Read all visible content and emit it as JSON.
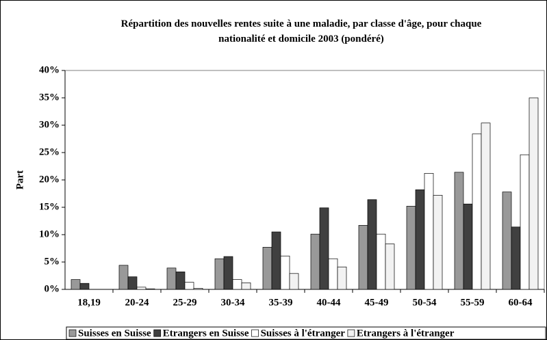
{
  "chart_data": {
    "type": "bar",
    "title": "Répartition des nouvelles rentes suite à une maladie, par classe d'âge, pour chaque nationalité et domicile 2003 (pondéré)",
    "y_label": "Part",
    "categories": [
      "18,19",
      "20-24",
      "25-29",
      "30-34",
      "35-39",
      "40-44",
      "45-49",
      "50-54",
      "55-59",
      "60-64"
    ],
    "series": [
      {
        "name": "Suisses en Suisse",
        "color": "#999999",
        "values": [
          1.8,
          4.4,
          3.9,
          5.6,
          7.7,
          10.1,
          11.7,
          15.2,
          21.4,
          17.8
        ]
      },
      {
        "name": "Etrangers en Suisse",
        "color": "#404040",
        "values": [
          1.1,
          2.3,
          3.2,
          6.0,
          10.5,
          14.9,
          16.4,
          18.2,
          15.6,
          11.4
        ]
      },
      {
        "name": "Suisses à l'étranger",
        "color": "#ffffff",
        "values": [
          0,
          0.4,
          1.3,
          1.8,
          6.1,
          5.6,
          10.1,
          21.2,
          28.4,
          24.6
        ]
      },
      {
        "name": "Etrangers à l'étranger",
        "color": "#f2f2f2",
        "values": [
          0,
          0.1,
          0.2,
          1.2,
          2.9,
          4.1,
          8.3,
          17.2,
          30.4,
          35.0
        ]
      }
    ],
    "ylim": [
      0,
      40
    ],
    "yticks": [
      {
        "value": 0,
        "label": "0%"
      },
      {
        "value": 5,
        "label": "5%"
      },
      {
        "value": 10,
        "label": "10%"
      },
      {
        "value": 15,
        "label": "15%"
      },
      {
        "value": 20,
        "label": "20%"
      },
      {
        "value": 25,
        "label": "25%"
      },
      {
        "value": 30,
        "label": "30%"
      },
      {
        "value": 35,
        "label": "35%"
      },
      {
        "value": 40,
        "label": "40%"
      }
    ],
    "grid": false,
    "legend": "bottom"
  }
}
